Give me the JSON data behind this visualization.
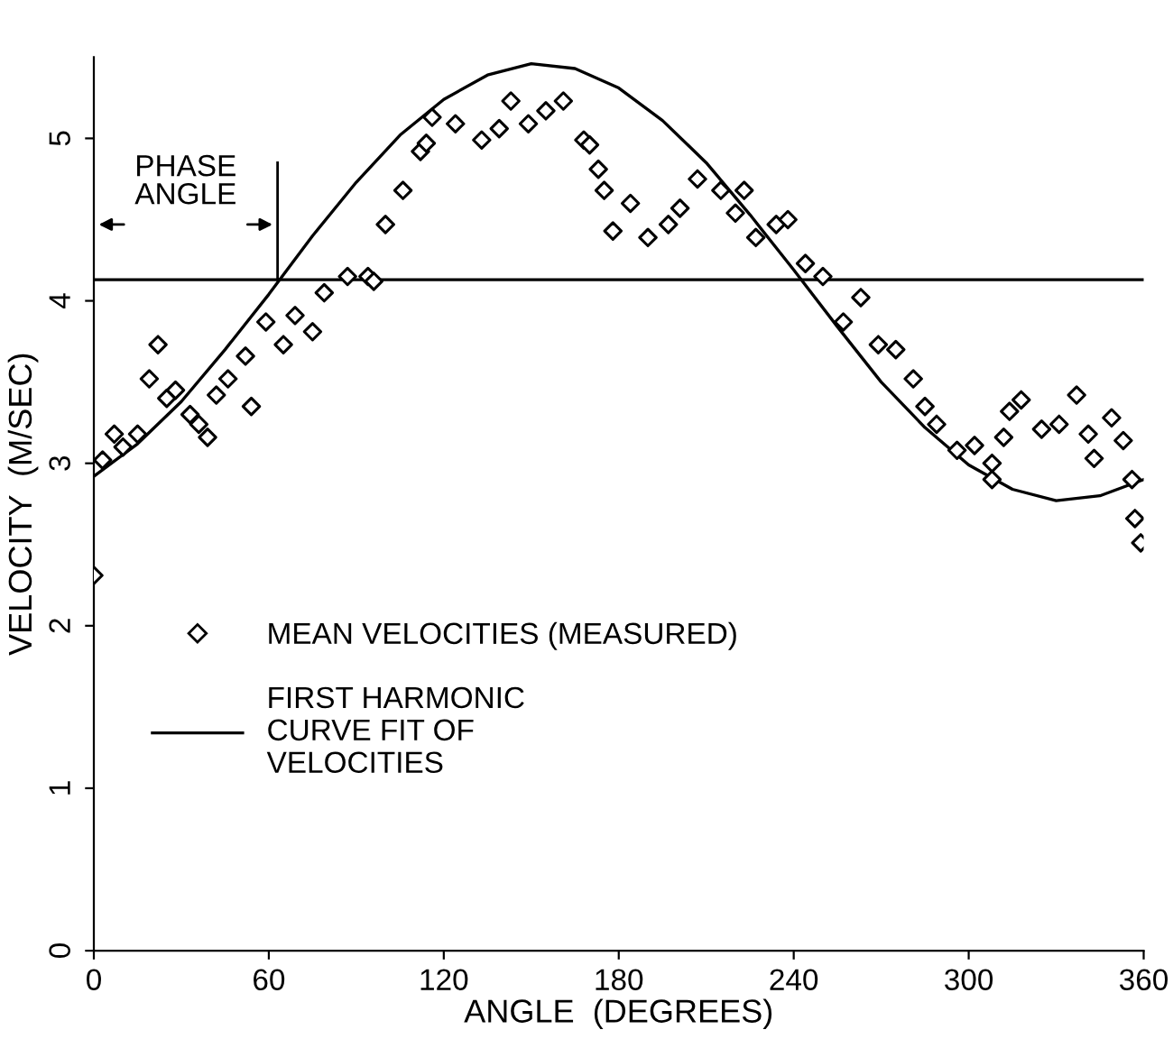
{
  "chart_data": {
    "type": "scatter",
    "xlabel": "ANGLE  (DEGREES)",
    "ylabel": "VELOCITY  (M/SEC)",
    "xlim": [
      0,
      360
    ],
    "xticks": [
      0,
      60,
      120,
      180,
      240,
      300,
      360
    ],
    "ylim": [
      0,
      5.5
    ],
    "yticks": [
      0,
      1,
      2,
      3,
      4,
      5
    ],
    "grid": false,
    "legend": "left",
    "marker": "diamond",
    "annotations": [
      {
        "text": "PHASE\nANGLE",
        "x": 63,
        "y": 4.13
      }
    ],
    "ref_lines": [
      {
        "axis": "y",
        "value": 4.13,
        "color": "#000000"
      }
    ],
    "series": [
      {
        "name": "MEAN VELOCITIES (MEASURED)",
        "color": "#000000",
        "x": [
          0,
          3,
          7,
          10,
          15,
          19,
          22,
          25,
          28,
          33,
          36,
          39,
          42,
          46,
          52,
          54,
          59,
          65,
          69,
          75,
          79,
          87,
          94,
          96,
          100,
          106,
          112,
          114,
          116,
          124,
          133,
          139,
          143,
          149,
          155,
          161,
          168,
          170,
          173,
          175,
          178,
          184,
          190,
          197,
          201,
          207,
          215,
          220,
          223,
          227,
          234,
          238,
          244,
          250,
          257,
          263,
          269,
          275,
          281,
          285,
          289,
          296,
          302,
          308,
          308,
          312,
          314,
          318,
          325,
          331,
          337,
          341,
          343,
          349,
          353,
          356,
          357,
          359
        ],
        "values": [
          2.31,
          3.02,
          3.18,
          3.1,
          3.18,
          3.52,
          3.73,
          3.4,
          3.45,
          3.3,
          3.24,
          3.16,
          3.42,
          3.52,
          3.66,
          3.35,
          3.87,
          3.73,
          3.91,
          3.81,
          4.05,
          4.15,
          4.15,
          4.12,
          4.47,
          4.68,
          4.92,
          4.97,
          5.13,
          5.09,
          4.99,
          5.06,
          5.23,
          5.09,
          5.17,
          5.23,
          4.99,
          4.96,
          4.81,
          4.68,
          4.43,
          4.6,
          4.39,
          4.47,
          4.57,
          4.75,
          4.68,
          4.54,
          4.68,
          4.39,
          4.47,
          4.5,
          4.23,
          4.15,
          3.87,
          4.02,
          3.73,
          3.7,
          3.52,
          3.35,
          3.24,
          3.08,
          3.11,
          3.0,
          2.9,
          3.16,
          3.32,
          3.39,
          3.21,
          3.24,
          3.42,
          3.18,
          3.03,
          3.28,
          3.14,
          2.9,
          2.66,
          2.51
        ]
      },
      {
        "name": "FIRST HARMONIC\nCURVE FIT OF\nVELOCITIES",
        "type": "line",
        "color": "#000000",
        "marker": "none",
        "line_style": "solid",
        "x": [
          0,
          15,
          30,
          45,
          60,
          75,
          90,
          105,
          120,
          135,
          150,
          165,
          180,
          195,
          210,
          225,
          240,
          255,
          270,
          285,
          300,
          315,
          330,
          345,
          360
        ],
        "values": [
          2.92,
          3.12,
          3.38,
          3.7,
          4.04,
          4.4,
          4.73,
          5.02,
          5.24,
          5.39,
          5.46,
          5.43,
          5.31,
          5.11,
          4.85,
          4.53,
          4.19,
          3.84,
          3.5,
          3.22,
          2.99,
          2.84,
          2.77,
          2.8,
          2.9
        ]
      }
    ]
  }
}
